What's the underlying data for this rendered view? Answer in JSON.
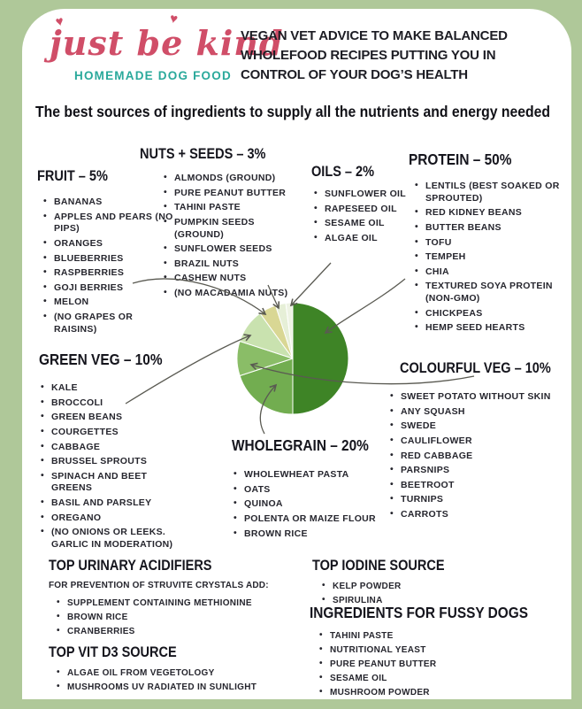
{
  "page": {
    "frame_color": "#afc899",
    "card_color": "#ffffff",
    "text_color": "#23232b",
    "arrow_color": "#5a5a52"
  },
  "header": {
    "logo_text": "just be kind",
    "logo_subtext": "HOMEMADE DOG FOOD",
    "logo_color": "#d04e68",
    "logo_subtext_color": "#2aa99b",
    "heart_icon": "♥",
    "tagline": "VEGAN VET ADVICE TO MAKE BALANCED WHOLEFOOD RECIPES PUTTING YOU IN CONTROL OF YOUR DOG’S HEALTH"
  },
  "title": "The best sources of ingredients to supply all the nutrients and energy needed",
  "sections": {
    "fruit": {
      "heading": "FRUIT – 5%",
      "items": [
        "BANANAS",
        "APPLES AND PEARS (NO PIPS)",
        "ORANGES",
        "BLUEBERRIES",
        "RASPBERRIES",
        "GOJI BERRIES",
        "MELON",
        "(NO GRAPES OR RAISINS)"
      ]
    },
    "nuts_seeds": {
      "heading": "NUTS + SEEDS – 3%",
      "items": [
        "ALMONDS (GROUND)",
        "PURE PEANUT BUTTER",
        "TAHINI PASTE",
        "PUMPKIN SEEDS (GROUND)",
        "SUNFLOWER SEEDS",
        "BRAZIL NUTS",
        "CASHEW NUTS",
        "(NO MACADAMIA NUTS)"
      ]
    },
    "oils": {
      "heading": "OILS – 2%",
      "items": [
        "SUNFLOWER OIL",
        "RAPESEED OIL",
        "SESAME OIL",
        "ALGAE OIL"
      ]
    },
    "protein": {
      "heading": "PROTEIN – 50%",
      "items": [
        "LENTILS (BEST SOAKED OR SPROUTED)",
        "RED KIDNEY BEANS",
        "BUTTER BEANS",
        "TOFU",
        "TEMPEH",
        "CHIA",
        "TEXTURED SOYA PROTEIN (NON-GMO)",
        "CHICKPEAS",
        "HEMP SEED HEARTS"
      ]
    },
    "green_veg": {
      "heading": "GREEN VEG – 10%",
      "items": [
        "KALE",
        "BROCCOLI",
        "GREEN BEANS",
        "COURGETTES",
        "CABBAGE",
        "BRUSSEL SPROUTS",
        "SPINACH AND BEET GREENS",
        "BASIL AND PARSLEY",
        "OREGANO",
        "(NO ONIONS OR LEEKS. GARLIC IN MODERATION)"
      ]
    },
    "colourful_veg": {
      "heading": "COLOURFUL VEG – 10%",
      "items": [
        "SWEET POTATO WITHOUT SKIN",
        "ANY SQUASH",
        "SWEDE",
        "CAULIFLOWER",
        "RED CABBAGE",
        "PARSNIPS",
        "BEETROOT",
        "TURNIPS",
        "CARROTS"
      ]
    },
    "wholegrain": {
      "heading": "WHOLEGRAIN – 20%",
      "items": [
        "WHOLEWHEAT PASTA",
        "OATS",
        "QUINOA",
        "POLENTA OR MAIZE FLOUR",
        "BROWN RICE"
      ]
    }
  },
  "footer": {
    "urinary": {
      "heading": "TOP URINARY ACIDIFIERS",
      "note": "FOR PREVENTION OF STRUVITE CRYSTALS ADD:",
      "items": [
        "SUPPLEMENT CONTAINING METHIONINE",
        "BROWN RICE",
        "CRANBERRIES"
      ]
    },
    "vit_d3": {
      "heading": "TOP VIT D3 SOURCE",
      "items": [
        "ALGAE OIL FROM VEGETOLOGY",
        "MUSHROOMS UV RADIATED IN SUNLIGHT"
      ]
    },
    "iodine": {
      "heading": "TOP IODINE SOURCE",
      "items": [
        "KELP POWDER",
        "SPIRULINA"
      ]
    },
    "fussy": {
      "heading": "INGREDIENTS FOR FUSSY DOGS",
      "items": [
        "TAHINI PASTE",
        "NUTRITIONAL YEAST",
        "PURE PEANUT BUTTER",
        "SESAME OIL",
        "MUSHROOM POWDER"
      ]
    }
  },
  "chart_data": {
    "type": "pie",
    "unit": "%",
    "start_angle_deg": 0,
    "direction": "clockwise",
    "legend_position": "none",
    "slices": [
      {
        "label": "PROTEIN",
        "value": 50,
        "color": "#3e8426"
      },
      {
        "label": "WHOLEGRAIN",
        "value": 20,
        "color": "#72ad50"
      },
      {
        "label": "COLOURFUL VEG",
        "value": 10,
        "color": "#8abd67"
      },
      {
        "label": "GREEN VEG",
        "value": 10,
        "color": "#c9e2af"
      },
      {
        "label": "FRUIT",
        "value": 5,
        "color": "#d9d794"
      },
      {
        "label": "NUTS + SEEDS",
        "value": 3,
        "color": "#e6efd7"
      },
      {
        "label": "OILS",
        "value": 2,
        "color": "#eef3e4"
      }
    ]
  }
}
